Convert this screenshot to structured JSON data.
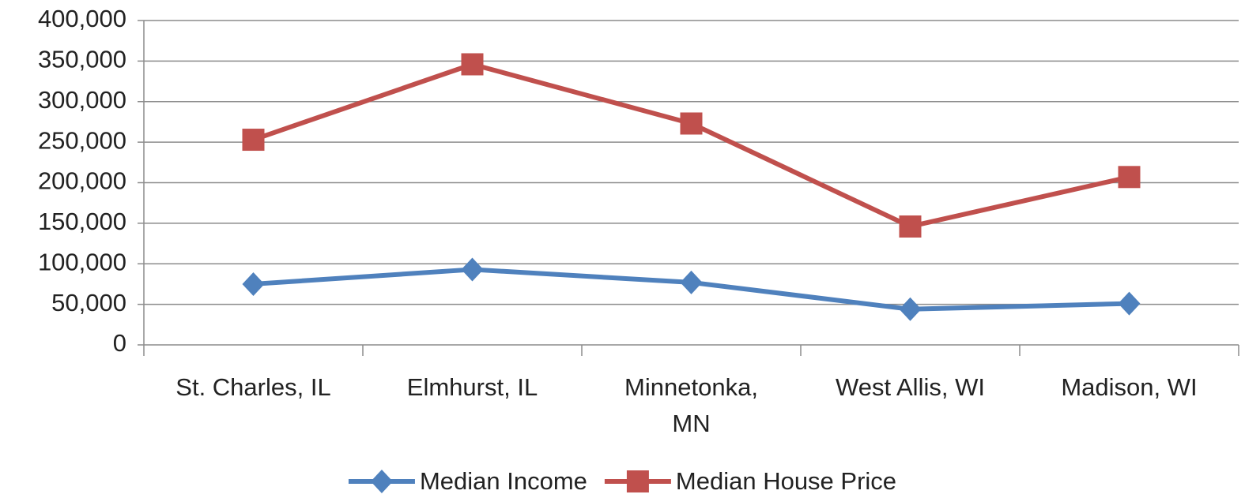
{
  "chart_data": {
    "type": "line",
    "categories": [
      "St. Charles, IL",
      "Elmhurst, IL",
      "Minnetonka, MN",
      "West Allis, WI",
      "Madison, WI"
    ],
    "series": [
      {
        "name": "Median Income",
        "color": "#4f81bd",
        "marker": "diamond",
        "values": [
          75000,
          93000,
          77000,
          44000,
          51000
        ]
      },
      {
        "name": "Median House Price",
        "color": "#c0504d",
        "marker": "square",
        "values": [
          253000,
          346000,
          273000,
          146000,
          207000
        ]
      }
    ],
    "ylim": [
      0,
      400000
    ],
    "yticks": [
      0,
      {
        "value": 50000,
        "label": "50,000"
      },
      {
        "value": 100000,
        "label": "100,000"
      },
      {
        "value": 150000,
        "label": "150,000"
      },
      {
        "value": 200000,
        "label": "200,000"
      },
      {
        "value": 250000,
        "label": "250,000"
      },
      {
        "value": 300000,
        "label": "300,000"
      },
      {
        "value": 350000,
        "label": "350,000"
      },
      {
        "value": 400000,
        "label": "400,000"
      }
    ],
    "grid": true,
    "legend": "bottom"
  }
}
